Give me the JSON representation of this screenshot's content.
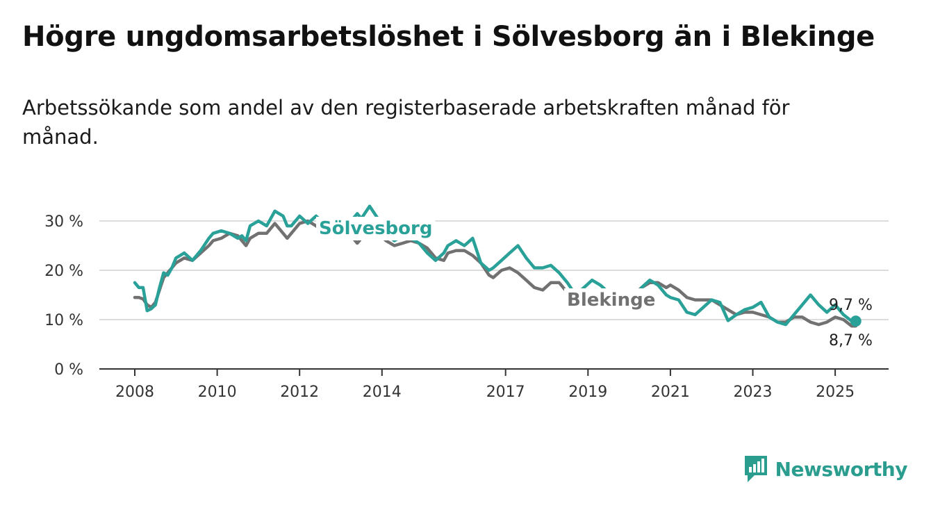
{
  "header": {
    "title": "Högre ungdomsarbetslöshet i Sölvesborg än i Blekinge",
    "subtitle": "Arbetssökande som andel av den registerbaserade arbetskraften månad för månad."
  },
  "brand": {
    "name": "Newsworthy",
    "icon": "newsworthy-logo-icon",
    "color": "#2a9d8f"
  },
  "chart_data": {
    "type": "line",
    "x_ticks": [
      2008,
      2010,
      2012,
      2014,
      2017,
      2019,
      2021,
      2023,
      2025
    ],
    "y_ticks": [
      {
        "value": 0,
        "label": "0 %"
      },
      {
        "value": 10,
        "label": "10 %"
      },
      {
        "value": 20,
        "label": "20 %"
      },
      {
        "value": 30,
        "label": "30 %"
      }
    ],
    "xlim": [
      2007.5,
      2026.3
    ],
    "ylim": [
      0,
      34
    ],
    "grid": "horizontal",
    "series": [
      {
        "name": "Blekinge",
        "color": "#717171",
        "end_label": "8,7 %",
        "points": [
          [
            2008.0,
            14.5
          ],
          [
            2008.1,
            14.5
          ],
          [
            2008.2,
            14.2
          ],
          [
            2008.3,
            13.0
          ],
          [
            2008.4,
            12.5
          ],
          [
            2008.5,
            13.5
          ],
          [
            2008.6,
            16.0
          ],
          [
            2008.7,
            18.5
          ],
          [
            2008.8,
            19.5
          ],
          [
            2008.9,
            20.5
          ],
          [
            2009.0,
            21.5
          ],
          [
            2009.2,
            22.5
          ],
          [
            2009.4,
            22.0
          ],
          [
            2009.6,
            23.5
          ],
          [
            2009.8,
            25.0
          ],
          [
            2009.9,
            26.0
          ],
          [
            2010.1,
            26.5
          ],
          [
            2010.3,
            27.5
          ],
          [
            2010.5,
            27.0
          ],
          [
            2010.6,
            26.0
          ],
          [
            2010.7,
            25.0
          ],
          [
            2010.8,
            26.5
          ],
          [
            2011.0,
            27.5
          ],
          [
            2011.2,
            27.5
          ],
          [
            2011.4,
            29.5
          ],
          [
            2011.6,
            27.5
          ],
          [
            2011.7,
            26.5
          ],
          [
            2011.8,
            27.5
          ],
          [
            2012.0,
            29.5
          ],
          [
            2012.2,
            30.0
          ],
          [
            2012.4,
            29.0
          ],
          [
            2012.6,
            27.5
          ],
          [
            2012.7,
            26.5
          ],
          [
            2012.9,
            27.5
          ],
          [
            2013.1,
            28.0
          ],
          [
            2013.3,
            26.5
          ],
          [
            2013.4,
            25.5
          ],
          [
            2013.5,
            26.5
          ],
          [
            2013.7,
            27.0
          ],
          [
            2013.9,
            27.5
          ],
          [
            2014.1,
            26.0
          ],
          [
            2014.3,
            25.0
          ],
          [
            2014.5,
            25.5
          ],
          [
            2014.7,
            26.0
          ],
          [
            2014.9,
            25.5
          ],
          [
            2015.1,
            24.5
          ],
          [
            2015.3,
            22.5
          ],
          [
            2015.5,
            22.0
          ],
          [
            2015.6,
            23.5
          ],
          [
            2015.8,
            24.0
          ],
          [
            2016.0,
            24.0
          ],
          [
            2016.2,
            23.0
          ],
          [
            2016.4,
            21.5
          ],
          [
            2016.6,
            19.0
          ],
          [
            2016.7,
            18.5
          ],
          [
            2016.9,
            20.0
          ],
          [
            2017.1,
            20.5
          ],
          [
            2017.3,
            19.5
          ],
          [
            2017.5,
            18.0
          ],
          [
            2017.7,
            16.5
          ],
          [
            2017.9,
            16.0
          ],
          [
            2018.1,
            17.5
          ],
          [
            2018.3,
            17.5
          ],
          [
            2018.5,
            15.5
          ],
          [
            2018.7,
            14.5
          ],
          [
            2018.9,
            13.5
          ],
          [
            2019.1,
            13.0
          ],
          [
            2019.3,
            12.5
          ],
          [
            2019.5,
            12.0
          ],
          [
            2019.7,
            13.0
          ],
          [
            2019.9,
            14.0
          ],
          [
            2020.1,
            15.0
          ],
          [
            2020.3,
            16.5
          ],
          [
            2020.5,
            17.5
          ],
          [
            2020.7,
            17.5
          ],
          [
            2020.9,
            16.5
          ],
          [
            2021.0,
            17.0
          ],
          [
            2021.2,
            16.0
          ],
          [
            2021.4,
            14.5
          ],
          [
            2021.6,
            14.0
          ],
          [
            2021.8,
            14.0
          ],
          [
            2022.0,
            14.0
          ],
          [
            2022.2,
            13.0
          ],
          [
            2022.4,
            12.0
          ],
          [
            2022.6,
            11.0
          ],
          [
            2022.8,
            11.5
          ],
          [
            2023.0,
            11.5
          ],
          [
            2023.2,
            11.0
          ],
          [
            2023.4,
            10.5
          ],
          [
            2023.6,
            9.5
          ],
          [
            2023.8,
            9.5
          ],
          [
            2024.0,
            10.5
          ],
          [
            2024.2,
            10.5
          ],
          [
            2024.4,
            9.5
          ],
          [
            2024.6,
            9.0
          ],
          [
            2024.8,
            9.5
          ],
          [
            2025.0,
            10.5
          ],
          [
            2025.2,
            10.0
          ],
          [
            2025.4,
            8.7
          ],
          [
            2025.5,
            8.7
          ]
        ]
      },
      {
        "name": "Sölvesborg",
        "color": "#2aa198",
        "end_label": "9,7 %",
        "points": [
          [
            2008.0,
            17.5
          ],
          [
            2008.1,
            16.5
          ],
          [
            2008.2,
            16.5
          ],
          [
            2008.3,
            11.8
          ],
          [
            2008.4,
            12.2
          ],
          [
            2008.5,
            13.0
          ],
          [
            2008.6,
            16.5
          ],
          [
            2008.7,
            19.5
          ],
          [
            2008.8,
            19.0
          ],
          [
            2008.9,
            20.5
          ],
          [
            2009.0,
            22.5
          ],
          [
            2009.2,
            23.5
          ],
          [
            2009.4,
            22.0
          ],
          [
            2009.6,
            24.0
          ],
          [
            2009.8,
            26.5
          ],
          [
            2009.9,
            27.5
          ],
          [
            2010.1,
            28.0
          ],
          [
            2010.3,
            27.5
          ],
          [
            2010.5,
            26.5
          ],
          [
            2010.6,
            27.0
          ],
          [
            2010.7,
            26.0
          ],
          [
            2010.8,
            29.0
          ],
          [
            2011.0,
            30.0
          ],
          [
            2011.2,
            29.0
          ],
          [
            2011.4,
            32.0
          ],
          [
            2011.6,
            31.0
          ],
          [
            2011.7,
            29.0
          ],
          [
            2011.8,
            29.0
          ],
          [
            2012.0,
            31.0
          ],
          [
            2012.2,
            29.5
          ],
          [
            2012.4,
            31.0
          ],
          [
            2012.6,
            29.5
          ],
          [
            2012.7,
            27.0
          ],
          [
            2012.9,
            26.5
          ],
          [
            2013.1,
            27.5
          ],
          [
            2013.3,
            30.5
          ],
          [
            2013.4,
            31.5
          ],
          [
            2013.5,
            30.5
          ],
          [
            2013.7,
            33.0
          ],
          [
            2013.9,
            30.5
          ],
          [
            2014.1,
            27.5
          ],
          [
            2014.3,
            26.0
          ],
          [
            2014.5,
            27.0
          ],
          [
            2014.7,
            26.5
          ],
          [
            2014.9,
            25.5
          ],
          [
            2015.1,
            23.5
          ],
          [
            2015.3,
            22.0
          ],
          [
            2015.5,
            23.5
          ],
          [
            2015.6,
            25.0
          ],
          [
            2015.8,
            26.0
          ],
          [
            2016.0,
            25.0
          ],
          [
            2016.2,
            26.5
          ],
          [
            2016.4,
            21.5
          ],
          [
            2016.6,
            20.0
          ],
          [
            2016.7,
            20.5
          ],
          [
            2016.9,
            22.0
          ],
          [
            2017.1,
            23.5
          ],
          [
            2017.3,
            25.0
          ],
          [
            2017.5,
            22.5
          ],
          [
            2017.7,
            20.5
          ],
          [
            2017.9,
            20.5
          ],
          [
            2018.1,
            21.0
          ],
          [
            2018.3,
            19.5
          ],
          [
            2018.5,
            17.5
          ],
          [
            2018.7,
            15.0
          ],
          [
            2018.9,
            16.5
          ],
          [
            2019.1,
            18.0
          ],
          [
            2019.3,
            17.0
          ],
          [
            2019.5,
            15.5
          ],
          [
            2019.7,
            12.5
          ],
          [
            2019.9,
            13.0
          ],
          [
            2020.1,
            12.0
          ],
          [
            2020.3,
            16.5
          ],
          [
            2020.5,
            18.0
          ],
          [
            2020.7,
            17.0
          ],
          [
            2020.9,
            15.0
          ],
          [
            2021.0,
            14.5
          ],
          [
            2021.2,
            14.0
          ],
          [
            2021.4,
            11.5
          ],
          [
            2021.6,
            11.0
          ],
          [
            2021.8,
            12.5
          ],
          [
            2022.0,
            14.0
          ],
          [
            2022.2,
            13.5
          ],
          [
            2022.4,
            9.8
          ],
          [
            2022.6,
            11.0
          ],
          [
            2022.8,
            12.0
          ],
          [
            2023.0,
            12.5
          ],
          [
            2023.2,
            13.5
          ],
          [
            2023.4,
            10.5
          ],
          [
            2023.6,
            9.5
          ],
          [
            2023.8,
            9.0
          ],
          [
            2024.0,
            11.0
          ],
          [
            2024.2,
            13.0
          ],
          [
            2024.4,
            15.0
          ],
          [
            2024.6,
            13.0
          ],
          [
            2024.8,
            11.5
          ],
          [
            2025.0,
            13.0
          ],
          [
            2025.2,
            11.0
          ],
          [
            2025.4,
            9.7
          ],
          [
            2025.5,
            9.7
          ]
        ]
      }
    ]
  }
}
